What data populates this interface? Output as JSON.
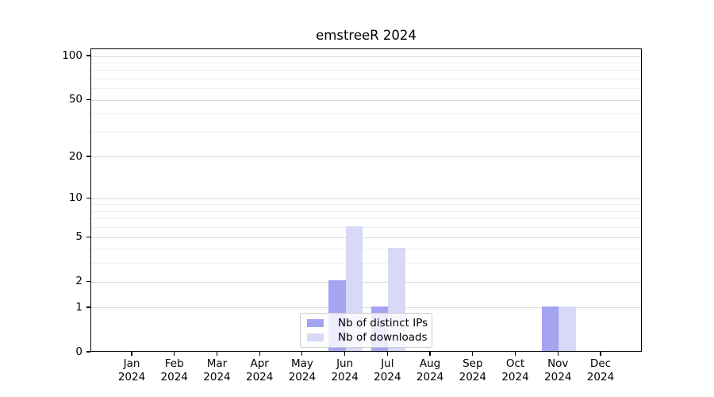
{
  "window": {
    "background": "#ffffff"
  },
  "chart_data": {
    "type": "bar",
    "title": "emstreeR 2024",
    "categories": [
      "Jan",
      "Feb",
      "Mar",
      "Apr",
      "May",
      "Jun",
      "Jul",
      "Aug",
      "Sep",
      "Oct",
      "Nov",
      "Dec"
    ],
    "x_tick_year": "2024",
    "series": [
      {
        "name": "Nb of distinct IPs",
        "color": "#a4a4f1",
        "values": [
          0,
          0,
          0,
          0,
          0,
          2,
          1,
          0,
          0,
          0,
          1,
          0
        ]
      },
      {
        "name": "Nb of downloads",
        "color": "#d8d8f7",
        "values": [
          0,
          0,
          0,
          0,
          0,
          6,
          4,
          0,
          0,
          0,
          1,
          0
        ]
      }
    ],
    "yscale": "log1p",
    "ylim": [
      0,
      112
    ],
    "yticks": [
      0,
      1,
      2,
      5,
      10,
      20,
      50,
      100
    ],
    "minor_yticks": [
      3,
      4,
      6,
      7,
      8,
      9,
      30,
      40,
      60,
      70,
      80,
      90
    ],
    "grid": "horizontal-major-and-minor",
    "legend": {
      "position": "lower-center",
      "items": [
        "Nb of distinct IPs",
        "Nb of downloads"
      ]
    }
  },
  "colors": {
    "major_grid": "#d9d9d9",
    "minor_grid": "#efefef",
    "axis": "#000000",
    "legend_border": "#cccccc",
    "text": "#000000"
  }
}
